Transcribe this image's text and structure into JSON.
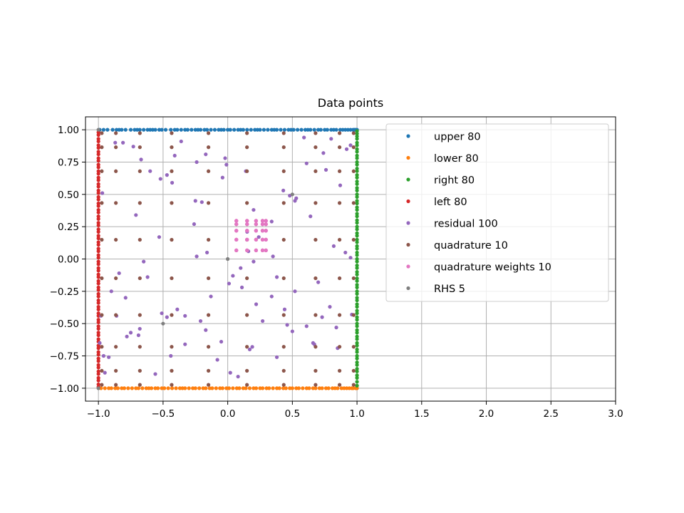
{
  "chart_data": {
    "type": "scatter",
    "title": "Data points",
    "xlabel": "",
    "ylabel": "",
    "xlim": [
      -1.1,
      3.0
    ],
    "ylim": [
      -1.1,
      1.1
    ],
    "xticks": [
      -1.0,
      -0.5,
      0.0,
      0.5,
      1.0,
      1.5,
      2.0,
      2.5,
      3.0
    ],
    "xtick_labels": [
      "−1.0",
      "−0.5",
      "0.0",
      "0.5",
      "1.0",
      "1.5",
      "2.0",
      "2.5",
      "3.0"
    ],
    "yticks": [
      1.0,
      0.75,
      0.5,
      0.25,
      0.0,
      -0.25,
      -0.5,
      -0.75,
      -1.0
    ],
    "ytick_labels": [
      "1.00",
      "0.75",
      "0.50",
      "0.25",
      "0.00",
      "−0.25",
      "−0.50",
      "−0.75",
      "−1.00"
    ],
    "grid": true,
    "legend_position": "upper right",
    "series": [
      {
        "name": "upper 80",
        "color": "#1f77b4",
        "x": [
          -0.99,
          -0.96,
          -0.93,
          -0.89,
          -0.86,
          -0.84,
          -0.82,
          -0.79,
          -0.75,
          -0.72,
          -0.7,
          -0.68,
          -0.65,
          -0.62,
          -0.6,
          -0.58,
          -0.56,
          -0.53,
          -0.51,
          -0.48,
          -0.44,
          -0.41,
          -0.39,
          -0.36,
          -0.33,
          -0.31,
          -0.28,
          -0.25,
          -0.23,
          -0.21,
          -0.18,
          -0.16,
          -0.13,
          -0.1,
          -0.07,
          -0.05,
          -0.03,
          0.0,
          0.02,
          0.05,
          0.08,
          0.1,
          0.12,
          0.15,
          0.18,
          0.21,
          0.23,
          0.25,
          0.28,
          0.31,
          0.34,
          0.36,
          0.38,
          0.41,
          0.44,
          0.47,
          0.49,
          0.51,
          0.54,
          0.57,
          0.6,
          0.62,
          0.64,
          0.67,
          0.7,
          0.72,
          0.75,
          0.77,
          0.8,
          0.82,
          0.84,
          0.87,
          0.89,
          0.91,
          0.93,
          0.95,
          0.97,
          0.98,
          0.99,
          1.0
        ],
        "y": [
          1.0,
          1.0,
          1.0,
          1.0,
          1.0,
          1.0,
          1.0,
          1.0,
          1.0,
          1.0,
          1.0,
          1.0,
          1.0,
          1.0,
          1.0,
          1.0,
          1.0,
          1.0,
          1.0,
          1.0,
          1.0,
          1.0,
          1.0,
          1.0,
          1.0,
          1.0,
          1.0,
          1.0,
          1.0,
          1.0,
          1.0,
          1.0,
          1.0,
          1.0,
          1.0,
          1.0,
          1.0,
          1.0,
          1.0,
          1.0,
          1.0,
          1.0,
          1.0,
          1.0,
          1.0,
          1.0,
          1.0,
          1.0,
          1.0,
          1.0,
          1.0,
          1.0,
          1.0,
          1.0,
          1.0,
          1.0,
          1.0,
          1.0,
          1.0,
          1.0,
          1.0,
          1.0,
          1.0,
          1.0,
          1.0,
          1.0,
          1.0,
          1.0,
          1.0,
          1.0,
          1.0,
          1.0,
          1.0,
          1.0,
          1.0,
          1.0,
          1.0,
          1.0,
          1.0,
          1.0
        ]
      },
      {
        "name": "lower 80",
        "color": "#ff7f0e",
        "x": [
          -0.98,
          -0.95,
          -0.92,
          -0.9,
          -0.87,
          -0.85,
          -0.82,
          -0.8,
          -0.77,
          -0.74,
          -0.71,
          -0.69,
          -0.66,
          -0.63,
          -0.61,
          -0.59,
          -0.56,
          -0.54,
          -0.51,
          -0.49,
          -0.46,
          -0.43,
          -0.4,
          -0.37,
          -0.35,
          -0.33,
          -0.3,
          -0.27,
          -0.25,
          -0.22,
          -0.19,
          -0.17,
          -0.14,
          -0.12,
          -0.09,
          -0.06,
          -0.04,
          -0.01,
          0.01,
          0.04,
          0.07,
          0.09,
          0.12,
          0.14,
          0.17,
          0.2,
          0.22,
          0.25,
          0.27,
          0.3,
          0.32,
          0.35,
          0.38,
          0.4,
          0.43,
          0.45,
          0.48,
          0.5,
          0.53,
          0.55,
          0.58,
          0.61,
          0.63,
          0.66,
          0.68,
          0.71,
          0.73,
          0.76,
          0.78,
          0.81,
          0.83,
          0.85,
          0.88,
          0.9,
          0.92,
          0.94,
          0.96,
          0.97,
          0.99,
          1.0
        ],
        "y": [
          -1.0,
          -1.0,
          -1.0,
          -1.0,
          -1.0,
          -1.0,
          -1.0,
          -1.0,
          -1.0,
          -1.0,
          -1.0,
          -1.0,
          -1.0,
          -1.0,
          -1.0,
          -1.0,
          -1.0,
          -1.0,
          -1.0,
          -1.0,
          -1.0,
          -1.0,
          -1.0,
          -1.0,
          -1.0,
          -1.0,
          -1.0,
          -1.0,
          -1.0,
          -1.0,
          -1.0,
          -1.0,
          -1.0,
          -1.0,
          -1.0,
          -1.0,
          -1.0,
          -1.0,
          -1.0,
          -1.0,
          -1.0,
          -1.0,
          -1.0,
          -1.0,
          -1.0,
          -1.0,
          -1.0,
          -1.0,
          -1.0,
          -1.0,
          -1.0,
          -1.0,
          -1.0,
          -1.0,
          -1.0,
          -1.0,
          -1.0,
          -1.0,
          -1.0,
          -1.0,
          -1.0,
          -1.0,
          -1.0,
          -1.0,
          -1.0,
          -1.0,
          -1.0,
          -1.0,
          -1.0,
          -1.0,
          -1.0,
          -1.0,
          -1.0,
          -1.0,
          -1.0,
          -1.0,
          -1.0,
          -1.0,
          -1.0,
          -1.0
        ]
      },
      {
        "name": "right 80",
        "color": "#2ca02c",
        "x": [
          1.0,
          1.0,
          1.0,
          1.0,
          1.0,
          1.0,
          1.0,
          1.0,
          1.0,
          1.0,
          1.0,
          1.0,
          1.0,
          1.0,
          1.0,
          1.0,
          1.0,
          1.0,
          1.0,
          1.0,
          1.0,
          1.0,
          1.0,
          1.0,
          1.0,
          1.0,
          1.0,
          1.0,
          1.0,
          1.0,
          1.0,
          1.0,
          1.0,
          1.0,
          1.0,
          1.0,
          1.0,
          1.0,
          1.0,
          1.0,
          1.0,
          1.0,
          1.0,
          1.0,
          1.0,
          1.0,
          1.0,
          1.0,
          1.0,
          1.0,
          1.0,
          1.0,
          1.0,
          1.0,
          1.0,
          1.0,
          1.0,
          1.0,
          1.0,
          1.0,
          1.0,
          1.0,
          1.0,
          1.0,
          1.0,
          1.0,
          1.0,
          1.0,
          1.0,
          1.0,
          1.0,
          1.0,
          1.0,
          1.0,
          1.0,
          1.0,
          1.0,
          1.0,
          1.0,
          1.0
        ],
        "y": [
          0.99,
          0.97,
          0.95,
          0.93,
          0.9,
          0.88,
          0.85,
          0.83,
          0.8,
          0.78,
          0.75,
          0.73,
          0.7,
          0.68,
          0.65,
          0.63,
          0.6,
          0.58,
          0.55,
          0.53,
          0.5,
          0.48,
          0.45,
          0.43,
          0.4,
          0.38,
          0.35,
          0.33,
          0.3,
          0.28,
          0.25,
          0.23,
          0.2,
          0.18,
          0.15,
          0.13,
          0.1,
          0.08,
          0.05,
          0.03,
          0.0,
          -0.02,
          -0.05,
          -0.07,
          -0.1,
          -0.12,
          -0.15,
          -0.17,
          -0.2,
          -0.22,
          -0.25,
          -0.27,
          -0.3,
          -0.32,
          -0.35,
          -0.37,
          -0.4,
          -0.42,
          -0.45,
          -0.47,
          -0.5,
          -0.52,
          -0.55,
          -0.57,
          -0.6,
          -0.62,
          -0.65,
          -0.67,
          -0.7,
          -0.72,
          -0.75,
          -0.77,
          -0.8,
          -0.82,
          -0.85,
          -0.87,
          -0.9,
          -0.92,
          -0.95,
          -0.98
        ]
      },
      {
        "name": "left 80",
        "color": "#d62728",
        "x": [
          -1.0,
          -1.0,
          -1.0,
          -1.0,
          -1.0,
          -1.0,
          -1.0,
          -1.0,
          -1.0,
          -1.0,
          -1.0,
          -1.0,
          -1.0,
          -1.0,
          -1.0,
          -1.0,
          -1.0,
          -1.0,
          -1.0,
          -1.0,
          -1.0,
          -1.0,
          -1.0,
          -1.0,
          -1.0,
          -1.0,
          -1.0,
          -1.0,
          -1.0,
          -1.0,
          -1.0,
          -1.0,
          -1.0,
          -1.0,
          -1.0,
          -1.0,
          -1.0,
          -1.0,
          -1.0,
          -1.0,
          -1.0,
          -1.0,
          -1.0,
          -1.0,
          -1.0,
          -1.0,
          -1.0,
          -1.0,
          -1.0,
          -1.0,
          -1.0,
          -1.0,
          -1.0,
          -1.0,
          -1.0,
          -1.0,
          -1.0,
          -1.0,
          -1.0,
          -1.0,
          -1.0,
          -1.0,
          -1.0,
          -1.0,
          -1.0,
          -1.0,
          -1.0,
          -1.0,
          -1.0,
          -1.0,
          -1.0,
          -1.0,
          -1.0,
          -1.0,
          -1.0,
          -1.0,
          -1.0,
          -1.0,
          -1.0,
          -1.0
        ],
        "y": [
          0.98,
          0.96,
          0.93,
          0.91,
          0.88,
          0.86,
          0.83,
          0.81,
          0.78,
          0.76,
          0.73,
          0.71,
          0.68,
          0.66,
          0.63,
          0.61,
          0.58,
          0.56,
          0.53,
          0.51,
          0.48,
          0.46,
          0.43,
          0.41,
          0.38,
          0.36,
          0.33,
          0.31,
          0.28,
          0.26,
          0.23,
          0.21,
          0.18,
          0.16,
          0.13,
          0.11,
          0.08,
          0.06,
          0.03,
          0.01,
          -0.02,
          -0.04,
          -0.07,
          -0.09,
          -0.12,
          -0.14,
          -0.17,
          -0.19,
          -0.22,
          -0.24,
          -0.27,
          -0.29,
          -0.32,
          -0.34,
          -0.37,
          -0.39,
          -0.42,
          -0.44,
          -0.47,
          -0.49,
          -0.52,
          -0.54,
          -0.57,
          -0.59,
          -0.62,
          -0.64,
          -0.67,
          -0.69,
          -0.72,
          -0.74,
          -0.77,
          -0.79,
          -0.82,
          -0.84,
          -0.87,
          -0.89,
          -0.92,
          -0.94,
          -0.97,
          -0.99
        ]
      },
      {
        "name": "residual 100",
        "color": "#9467bd",
        "x": [
          -0.97,
          -0.87,
          -0.81,
          -0.73,
          -0.71,
          -0.67,
          -0.6,
          -0.52,
          -0.47,
          -0.43,
          -0.41,
          -0.36,
          -0.26,
          -0.25,
          -0.24,
          -0.2,
          -0.17,
          -0.04,
          -0.02,
          -0.01,
          0.14,
          0.15,
          0.2,
          0.24,
          0.34,
          0.43,
          0.48,
          0.52,
          0.59,
          0.61,
          0.74,
          0.76,
          0.8,
          0.87,
          0.92,
          0.95,
          -0.96,
          -0.9,
          -0.86,
          -0.78,
          -0.68,
          -0.51,
          -0.33,
          -0.17,
          -0.05,
          0.01,
          0.04,
          0.1,
          0.16,
          0.2,
          0.34,
          0.38,
          0.44,
          0.52,
          0.61,
          0.66,
          0.73,
          0.79,
          0.85,
          0.96,
          -0.99,
          -0.92,
          -0.79,
          -0.69,
          -0.62,
          -0.56,
          -0.44,
          -0.39,
          -0.24,
          -0.13,
          0.02,
          0.11,
          0.22,
          0.35,
          0.46,
          0.53,
          0.64,
          0.7,
          0.82,
          0.91,
          -0.98,
          -0.95,
          -0.84,
          -0.75,
          -0.65,
          -0.53,
          -0.47,
          -0.33,
          -0.21,
          -0.16,
          -0.08,
          0.08,
          0.17,
          0.19,
          0.27,
          0.38,
          0.5,
          0.67,
          0.84,
          0.95
        ],
        "y": [
          0.51,
          0.9,
          0.9,
          0.87,
          0.34,
          0.77,
          0.68,
          0.62,
          0.65,
          0.59,
          0.8,
          0.91,
          0.27,
          0.45,
          0.75,
          0.44,
          0.81,
          0.63,
          0.78,
          0.73,
          0.68,
          0.21,
          0.38,
          0.17,
          0.29,
          0.53,
          0.49,
          0.45,
          0.94,
          0.74,
          0.82,
          0.69,
          0.93,
          0.57,
          0.85,
          0.88,
          -0.75,
          -0.25,
          -0.44,
          -0.6,
          -0.54,
          -0.42,
          -0.66,
          -0.55,
          -0.64,
          -0.19,
          -0.13,
          -0.07,
          0.06,
          -0.02,
          -0.29,
          -0.14,
          -0.39,
          -0.25,
          -0.52,
          -0.65,
          -0.45,
          -0.37,
          -0.69,
          -0.43,
          -0.65,
          -0.76,
          -0.3,
          -0.59,
          -0.14,
          -0.89,
          -0.75,
          -0.39,
          0.02,
          -0.29,
          -0.88,
          -0.22,
          -0.35,
          0.02,
          -0.51,
          0.47,
          0.33,
          -0.18,
          0.1,
          0.05,
          -0.44,
          -0.88,
          -0.11,
          -0.57,
          -0.02,
          0.17,
          -0.45,
          -0.44,
          -0.48,
          0.05,
          -0.78,
          -0.91,
          -0.7,
          -0.68,
          -0.48,
          -0.76,
          -0.56,
          -0.66,
          -0.53,
          0.01
        ],
        "note_unused": ""
      },
      {
        "name": "quadrature 10",
        "color": "#8c564b",
        "x": [
          -0.9739,
          -0.8651,
          -0.6794,
          -0.4334,
          -0.1489,
          0.1489,
          0.4334,
          0.6794,
          0.8651,
          0.9739
        ],
        "y": [
          -0.9739,
          -0.8651,
          -0.6794,
          -0.4334,
          -0.1489,
          0.1489,
          0.4334,
          0.6794,
          0.8651,
          0.9739
        ],
        "grid_product": true
      },
      {
        "name": "quadrature weights 10",
        "color": "#e377c2",
        "x": [
          0.0667,
          0.1495,
          0.2191,
          0.2693,
          0.2955,
          0.2955,
          0.2693,
          0.2191,
          0.1495,
          0.0667
        ],
        "y": [
          0.0667,
          0.1495,
          0.2191,
          0.2693,
          0.2955,
          0.2955,
          0.2693,
          0.2191,
          0.1495,
          0.0667
        ],
        "grid_product": true
      },
      {
        "name": "RHS 5",
        "color": "#7f7f7f",
        "x": [
          -1.0,
          -1.0,
          0.0,
          0.5,
          -0.5
        ],
        "y": [
          1.0,
          -1.0,
          0.0,
          0.5,
          -0.5
        ]
      }
    ]
  }
}
